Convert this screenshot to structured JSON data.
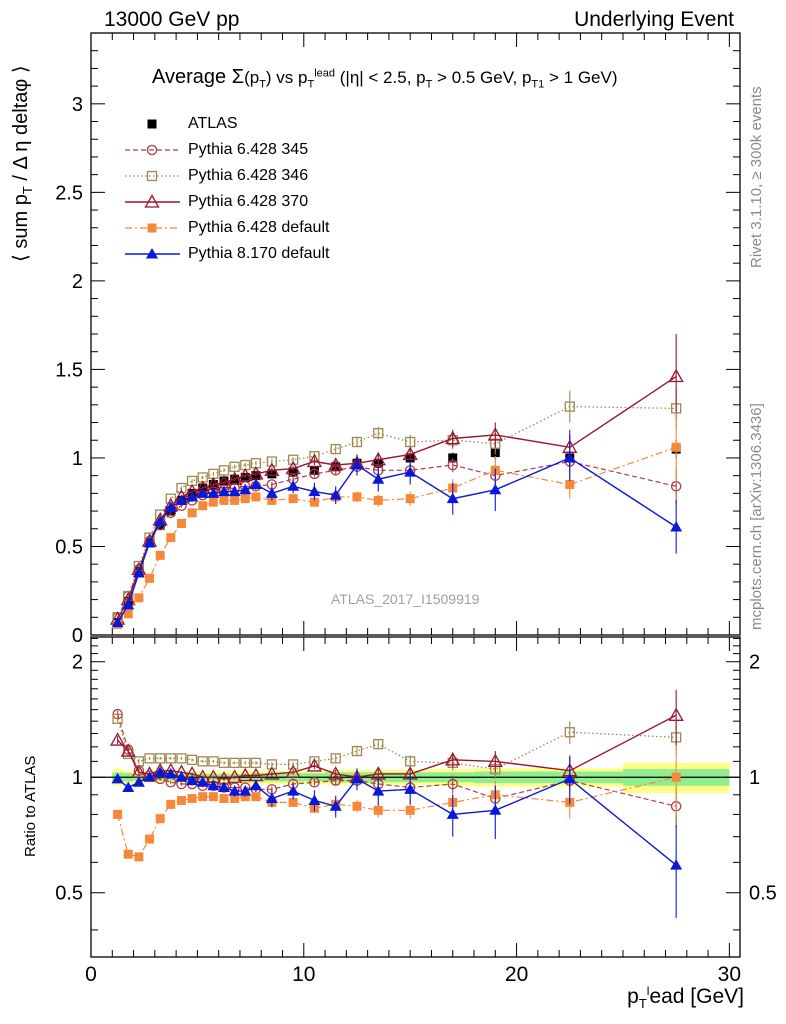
{
  "header": {
    "left": "13000 GeV pp",
    "right": "Underlying Event"
  },
  "side_labels": {
    "rivet": "Rivet 3.1.10, ≥ 300k events",
    "mcplots": "mcplots.cern.ch [arXiv:1306.3436]"
  },
  "watermark": "ATLAS_2017_I1509919",
  "colors": {
    "atlas": "#000000",
    "p345": "#b03a48",
    "p346": "#a08850",
    "p370": "#9b1530",
    "p6def": "#f7883a",
    "p8def": "#0a18d8",
    "band_green": "#90ee90",
    "band_yellow": "#ffff88"
  },
  "chart_data": [
    {
      "type": "line",
      "panel": "main",
      "title": "Average Σ(pT) vs pT lead (|η| < 2.5, pT > 0.5 GeV, pT1 > 1 GeV)",
      "title_parts": {
        "a": "Average ",
        "sigma": "Σ",
        "b": "(p",
        "sub1": "T",
        "c": ") vs p",
        "sub2": "T",
        "sup2": "lead",
        "d": " (|η| < 2.5, p",
        "sub3": "T",
        "e": " > 0.5 GeV, p",
        "sub4": "T1",
        "f": " > 1 GeV)"
      },
      "ylabel": "⟨ sum pT / Δ η deltaφ ⟩",
      "ylabel_parts": {
        "a": "⟨ sum p",
        "sub": "T",
        "b": " / Δ η deltaφ ⟩"
      },
      "xlim": [
        0,
        30.5
      ],
      "ylim": [
        0,
        3.4
      ],
      "yticks": [
        0,
        0.5,
        1,
        1.5,
        2,
        2.5,
        3
      ],
      "ytick_labels": [
        "0",
        "0.5",
        "1",
        "1.5",
        "2",
        "2.5",
        "3"
      ],
      "legend_position": "top-left",
      "x": [
        1.25,
        1.75,
        2.25,
        2.75,
        3.25,
        3.75,
        4.25,
        4.75,
        5.25,
        5.75,
        6.25,
        6.75,
        7.25,
        7.75,
        8.5,
        9.5,
        10.5,
        11.5,
        12.5,
        13.5,
        15,
        17,
        19,
        22.5,
        27.5
      ],
      "series": [
        {
          "name": "ATLAS",
          "key": "atlas",
          "style": "data",
          "values": [
            0.07,
            0.19,
            0.36,
            0.52,
            0.62,
            0.7,
            0.76,
            0.8,
            0.83,
            0.85,
            0.87,
            0.88,
            0.89,
            0.9,
            0.91,
            0.92,
            0.93,
            0.95,
            0.97,
            0.97,
            1.0,
            1.0,
            1.03,
            1.0,
            1.05
          ],
          "errors": [
            0.003,
            0.005,
            0.008,
            0.01,
            0.01,
            0.01,
            0.01,
            0.01,
            0.01,
            0.01,
            0.01,
            0.01,
            0.012,
            0.012,
            0.012,
            0.015,
            0.015,
            0.018,
            0.02,
            0.02,
            0.025,
            0.03,
            0.035,
            0.04,
            0.05
          ]
        },
        {
          "name": "Pythia 6.428 345",
          "key": "p345",
          "style": "dashed-open-circle",
          "values": [
            0.1,
            0.22,
            0.37,
            0.53,
            0.62,
            0.69,
            0.73,
            0.76,
            0.79,
            0.81,
            0.82,
            0.83,
            0.84,
            0.84,
            0.85,
            0.88,
            0.91,
            0.93,
            0.95,
            0.93,
            0.93,
            0.96,
            0.9,
            0.98,
            0.84
          ],
          "errors": [
            0.005,
            0.008,
            0.01,
            0.01,
            0.01,
            0.01,
            0.01,
            0.01,
            0.01,
            0.01,
            0.01,
            0.012,
            0.012,
            0.012,
            0.015,
            0.015,
            0.02,
            0.025,
            0.03,
            0.03,
            0.035,
            0.04,
            0.06,
            0.07,
            0.1
          ]
        },
        {
          "name": "Pythia 6.428 346",
          "key": "p346",
          "style": "dotted-open-square",
          "values": [
            0.1,
            0.22,
            0.39,
            0.55,
            0.68,
            0.77,
            0.83,
            0.87,
            0.89,
            0.91,
            0.93,
            0.95,
            0.96,
            0.97,
            0.98,
            0.99,
            1.01,
            1.05,
            1.09,
            1.14,
            1.09,
            1.1,
            1.08,
            1.29,
            1.28
          ],
          "errors": [
            0.005,
            0.008,
            0.01,
            0.01,
            0.01,
            0.01,
            0.01,
            0.01,
            0.01,
            0.01,
            0.01,
            0.012,
            0.012,
            0.012,
            0.015,
            0.015,
            0.02,
            0.025,
            0.03,
            0.035,
            0.04,
            0.05,
            0.06,
            0.09,
            0.12
          ]
        },
        {
          "name": "Pythia 6.428 370",
          "key": "p370",
          "style": "solid-open-triangle",
          "values": [
            0.09,
            0.2,
            0.37,
            0.53,
            0.65,
            0.73,
            0.78,
            0.81,
            0.83,
            0.85,
            0.86,
            0.88,
            0.9,
            0.91,
            0.93,
            0.94,
            0.98,
            0.96,
            0.97,
            0.99,
            1.02,
            1.11,
            1.13,
            1.06,
            1.46
          ],
          "errors": [
            0.005,
            0.008,
            0.01,
            0.01,
            0.01,
            0.01,
            0.01,
            0.01,
            0.01,
            0.01,
            0.01,
            0.012,
            0.012,
            0.012,
            0.015,
            0.015,
            0.02,
            0.025,
            0.03,
            0.035,
            0.04,
            0.05,
            0.07,
            0.1,
            0.24
          ]
        },
        {
          "name": "Pythia 6.428 default",
          "key": "p6def",
          "style": "dashdot-filled-square",
          "values": [
            0.06,
            0.12,
            0.21,
            0.32,
            0.45,
            0.55,
            0.63,
            0.69,
            0.73,
            0.75,
            0.76,
            0.76,
            0.77,
            0.78,
            0.76,
            0.77,
            0.75,
            0.78,
            0.78,
            0.76,
            0.77,
            0.83,
            0.93,
            0.85,
            1.06
          ],
          "errors": [
            0.004,
            0.006,
            0.008,
            0.01,
            0.01,
            0.01,
            0.01,
            0.01,
            0.01,
            0.01,
            0.01,
            0.012,
            0.012,
            0.012,
            0.015,
            0.015,
            0.02,
            0.025,
            0.03,
            0.035,
            0.04,
            0.05,
            0.08,
            0.08,
            0.2
          ]
        },
        {
          "name": "Pythia 8.170 default",
          "key": "p8def",
          "style": "solid-filled-triangle",
          "values": [
            0.07,
            0.17,
            0.35,
            0.52,
            0.64,
            0.72,
            0.76,
            0.78,
            0.8,
            0.8,
            0.81,
            0.81,
            0.82,
            0.85,
            0.8,
            0.84,
            0.81,
            0.79,
            0.96,
            0.88,
            0.92,
            0.77,
            0.82,
            1.0,
            0.61
          ],
          "errors": [
            0.004,
            0.006,
            0.008,
            0.01,
            0.01,
            0.015,
            0.015,
            0.015,
            0.02,
            0.02,
            0.02,
            0.025,
            0.025,
            0.03,
            0.04,
            0.04,
            0.05,
            0.05,
            0.06,
            0.07,
            0.07,
            0.09,
            0.12,
            0.13,
            0.15
          ]
        }
      ]
    },
    {
      "type": "line",
      "panel": "ratio",
      "ylabel": "Ratio to ATLAS",
      "xlabel": "pTlead [GeV]",
      "xlabel_parts": {
        "a": "p",
        "sub": "T",
        "sup": "l",
        "b": "ead [GeV]"
      },
      "xlim": [
        0,
        30.5
      ],
      "ylim": [
        0.34,
        2.32
      ],
      "xticks": [
        0,
        10,
        20,
        30
      ],
      "xtick_labels": [
        "0",
        "10",
        "20",
        "30"
      ],
      "yticks": [
        0.5,
        1,
        2
      ],
      "ytick_labels": [
        "0.5",
        "1",
        "2"
      ],
      "x": [
        1.25,
        1.75,
        2.25,
        2.75,
        3.25,
        3.75,
        4.25,
        4.75,
        5.25,
        5.75,
        6.25,
        6.75,
        7.25,
        7.75,
        8.5,
        9.5,
        10.5,
        11.5,
        12.5,
        13.5,
        15,
        17,
        19,
        22.5,
        27.5
      ],
      "reference_band": {
        "x_edges": [
          1,
          1.5,
          2,
          2.5,
          3,
          3.5,
          4,
          4.5,
          5,
          5.5,
          6,
          6.5,
          7,
          7.5,
          8,
          9,
          10,
          11,
          12,
          13,
          14,
          16,
          18,
          20,
          25,
          30
        ],
        "inner": [
          0.03,
          0.025,
          0.02,
          0.02,
          0.02,
          0.02,
          0.02,
          0.02,
          0.02,
          0.02,
          0.02,
          0.02,
          0.02,
          0.025,
          0.025,
          0.025,
          0.025,
          0.03,
          0.03,
          0.03,
          0.03,
          0.03,
          0.035,
          0.035,
          0.05
        ],
        "outer": [
          0.05,
          0.04,
          0.035,
          0.035,
          0.035,
          0.035,
          0.035,
          0.035,
          0.035,
          0.035,
          0.035,
          0.035,
          0.04,
          0.04,
          0.04,
          0.04,
          0.04,
          0.045,
          0.045,
          0.045,
          0.045,
          0.05,
          0.055,
          0.055,
          0.09
        ]
      },
      "series": [
        {
          "name": "Pythia 6.428 345",
          "key": "p345",
          "style": "dashed-open-circle",
          "values": [
            1.46,
            1.18,
            1.04,
            1.01,
            0.99,
            0.97,
            0.96,
            0.96,
            0.95,
            0.95,
            0.94,
            0.94,
            0.94,
            0.93,
            0.93,
            0.96,
            0.97,
            0.98,
            0.98,
            0.96,
            0.94,
            0.96,
            0.88,
            0.98,
            0.84
          ],
          "errors": [
            0.03,
            0.02,
            0.015,
            0.01,
            0.01,
            0.01,
            0.01,
            0.01,
            0.01,
            0.01,
            0.01,
            0.01,
            0.012,
            0.012,
            0.015,
            0.015,
            0.02,
            0.025,
            0.03,
            0.035,
            0.04,
            0.05,
            0.06,
            0.07,
            0.1
          ]
        },
        {
          "name": "Pythia 6.428 346",
          "key": "p346",
          "style": "dotted-open-square",
          "values": [
            1.42,
            1.15,
            1.1,
            1.12,
            1.12,
            1.12,
            1.12,
            1.11,
            1.1,
            1.1,
            1.09,
            1.09,
            1.09,
            1.09,
            1.08,
            1.08,
            1.1,
            1.12,
            1.17,
            1.22,
            1.1,
            1.09,
            1.05,
            1.31,
            1.27
          ],
          "errors": [
            0.03,
            0.02,
            0.015,
            0.01,
            0.01,
            0.01,
            0.01,
            0.01,
            0.01,
            0.01,
            0.01,
            0.01,
            0.012,
            0.012,
            0.015,
            0.015,
            0.02,
            0.025,
            0.03,
            0.035,
            0.04,
            0.05,
            0.06,
            0.09,
            0.12
          ]
        },
        {
          "name": "Pythia 6.428 370",
          "key": "p370",
          "style": "solid-open-triangle",
          "values": [
            1.25,
            1.17,
            1.03,
            1.02,
            1.04,
            1.04,
            1.03,
            1.02,
            1.0,
            1.0,
            0.99,
            1.0,
            1.01,
            1.01,
            1.02,
            1.03,
            1.07,
            1.02,
            1.0,
            1.02,
            1.02,
            1.11,
            1.1,
            1.04,
            1.45
          ],
          "errors": [
            0.03,
            0.02,
            0.015,
            0.01,
            0.01,
            0.01,
            0.01,
            0.01,
            0.01,
            0.01,
            0.01,
            0.01,
            0.012,
            0.012,
            0.015,
            0.015,
            0.02,
            0.025,
            0.03,
            0.035,
            0.04,
            0.05,
            0.07,
            0.1,
            0.24
          ]
        },
        {
          "name": "Pythia 6.428 default",
          "key": "p6def",
          "style": "dashdot-filled-square",
          "values": [
            0.8,
            0.63,
            0.62,
            0.69,
            0.78,
            0.85,
            0.87,
            0.88,
            0.89,
            0.89,
            0.88,
            0.88,
            0.89,
            0.89,
            0.86,
            0.86,
            0.83,
            0.85,
            0.84,
            0.82,
            0.82,
            0.86,
            0.9,
            0.86,
            1.0
          ],
          "errors": [
            0.02,
            0.015,
            0.01,
            0.01,
            0.01,
            0.01,
            0.01,
            0.01,
            0.01,
            0.01,
            0.01,
            0.01,
            0.012,
            0.012,
            0.015,
            0.015,
            0.02,
            0.025,
            0.03,
            0.035,
            0.04,
            0.05,
            0.08,
            0.08,
            0.2
          ]
        },
        {
          "name": "Pythia 8.170 default",
          "key": "p8def",
          "style": "solid-filled-triangle",
          "values": [
            0.99,
            0.94,
            0.97,
            1.0,
            1.03,
            1.02,
            1.0,
            0.98,
            0.97,
            0.95,
            0.94,
            0.92,
            0.92,
            0.95,
            0.88,
            0.92,
            0.87,
            0.84,
            0.99,
            0.92,
            0.93,
            0.8,
            0.82,
            0.99,
            0.59
          ],
          "errors": [
            0.02,
            0.015,
            0.015,
            0.015,
            0.015,
            0.02,
            0.02,
            0.02,
            0.025,
            0.025,
            0.025,
            0.03,
            0.03,
            0.035,
            0.045,
            0.045,
            0.055,
            0.055,
            0.065,
            0.075,
            0.08,
            0.1,
            0.13,
            0.14,
            0.16
          ]
        }
      ]
    }
  ]
}
